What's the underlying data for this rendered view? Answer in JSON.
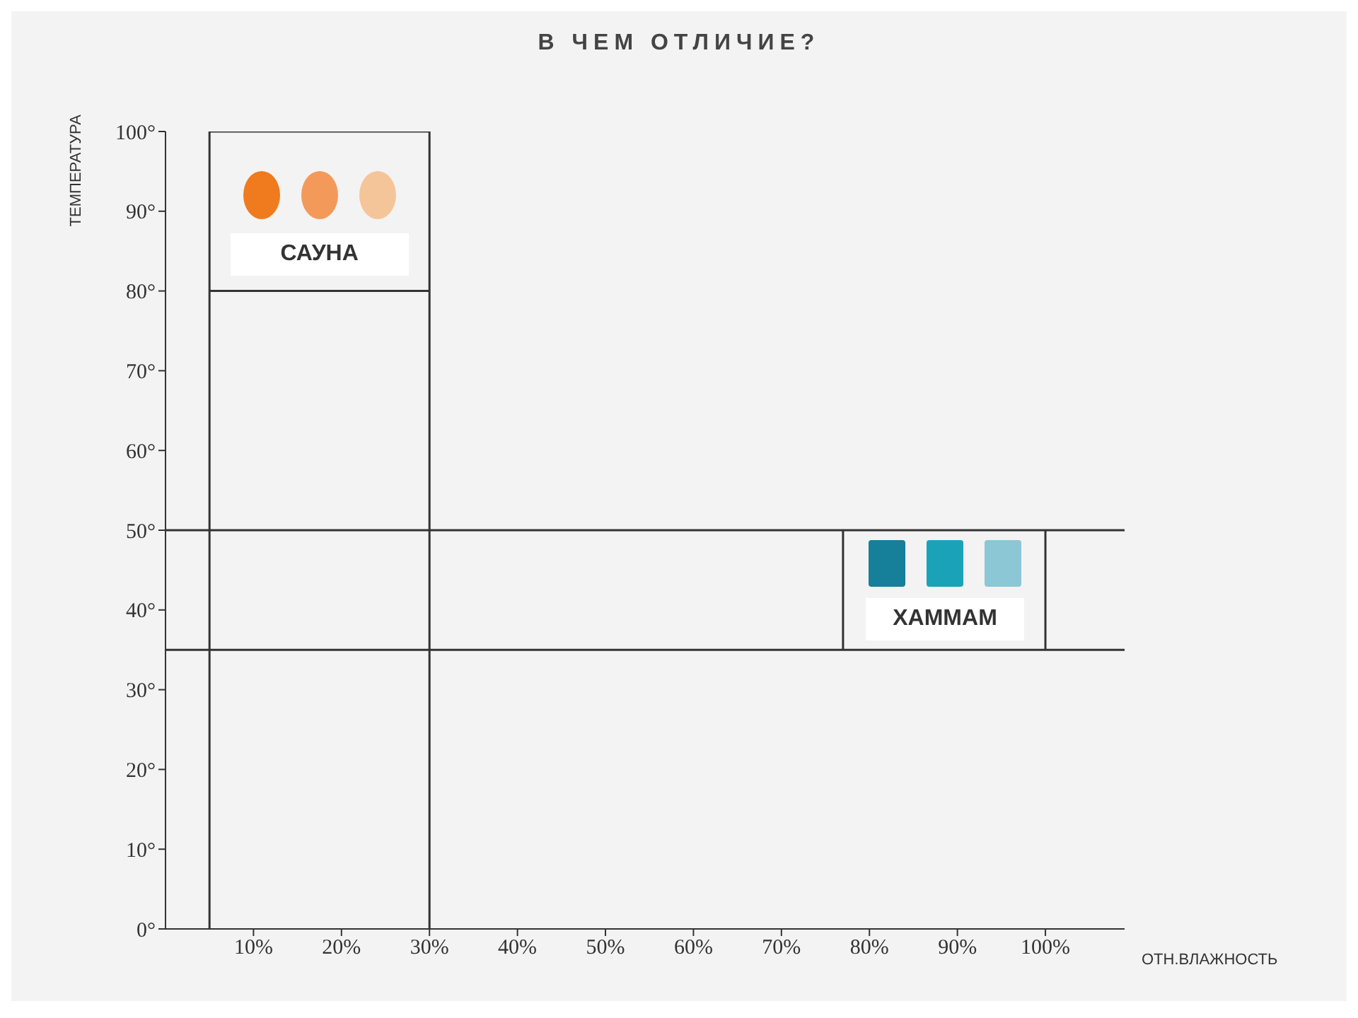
{
  "chart_data": {
    "type": "line",
    "title": "В ЧЕМ ОТЛИЧИЕ?",
    "xlabel": "ОТН.ВЛАЖНОСТЬ",
    "ylabel": "ТЕМПЕРАТУРА",
    "xlim": [
      0,
      109
    ],
    "xticks": [
      {
        "value": 10,
        "label": "10%"
      },
      {
        "value": 20,
        "label": "20%"
      },
      {
        "value": 30,
        "label": "30%"
      },
      {
        "value": 40,
        "label": "40%"
      },
      {
        "value": 50,
        "label": "50%"
      },
      {
        "value": 60,
        "label": "60%"
      },
      {
        "value": 70,
        "label": "70%"
      },
      {
        "value": 80,
        "label": "80%"
      },
      {
        "value": 90,
        "label": "90%"
      },
      {
        "value": 100,
        "label": "100%"
      }
    ],
    "ylim": [
      0,
      100
    ],
    "yticks": [
      {
        "value": 0,
        "label": "0°"
      },
      {
        "value": 10,
        "label": "10°"
      },
      {
        "value": 20,
        "label": "20°"
      },
      {
        "value": 30,
        "label": "30°"
      },
      {
        "value": 40,
        "label": "40°"
      },
      {
        "value": 50,
        "label": "50°"
      },
      {
        "value": 60,
        "label": "60°"
      },
      {
        "value": 70,
        "label": "70°"
      },
      {
        "value": 80,
        "label": "80°"
      },
      {
        "value": 90,
        "label": "90°"
      },
      {
        "value": 100,
        "label": "100°"
      }
    ],
    "series": [
      {
        "color": "#333333",
        "x": [
          5,
          30
        ],
        "values": [
          80,
          80
        ]
      },
      {
        "color": "#333333",
        "x": [
          5,
          30
        ],
        "values": [
          100,
          100
        ]
      },
      {
        "color": "#333333",
        "x": [
          77,
          77
        ],
        "values": [
          35,
          50
        ]
      },
      {
        "color": "#333333",
        "x": [
          100,
          100
        ],
        "values": [
          35,
          50
        ]
      }
    ],
    "ref_lines": [
      {
        "axis": "x",
        "value": 5,
        "color": "#333333"
      },
      {
        "axis": "x",
        "value": 30,
        "color": "#333333"
      },
      {
        "axis": "y",
        "value": 50,
        "color": "#333333"
      },
      {
        "axis": "y",
        "value": 35,
        "color": "#333333"
      }
    ],
    "annotations": [
      "САУНА",
      "ХАММАМ"
    ],
    "marker": "none",
    "line_style": "solid"
  }
}
